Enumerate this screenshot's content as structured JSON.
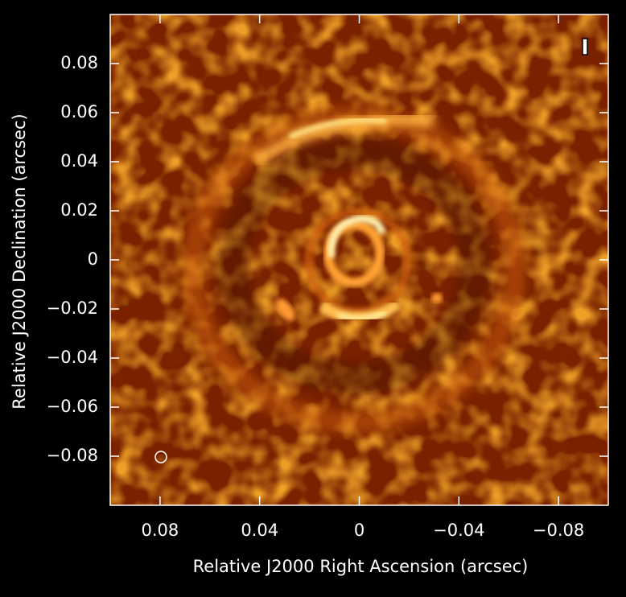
{
  "chart_data": {
    "type": "image",
    "xlabel": "Relative J2000 Right Ascension (arcsec)",
    "ylabel": "Relative J2000 Declination (arcsec)",
    "xlim": [
      0.1,
      -0.1
    ],
    "ylim": [
      -0.1,
      0.1
    ],
    "xticks": [
      0.08,
      0.04,
      0,
      {
        "value": -0.04,
        "label": "−0.04"
      },
      {
        "value": -0.08,
        "label": "−0.08"
      }
    ],
    "yticks": [
      {
        "value": -0.08,
        "label": "−0.08"
      },
      {
        "value": -0.06,
        "label": "−0.06"
      },
      {
        "value": -0.04,
        "label": "−0.04"
      },
      {
        "value": -0.02,
        "label": "−0.02"
      },
      0,
      0.02,
      0.04,
      0.06,
      0.08
    ]
  }
}
